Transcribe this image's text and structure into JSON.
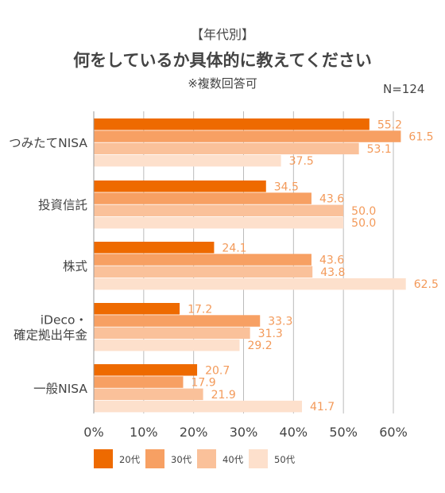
{
  "header": {
    "supertitle": "【年代別】",
    "title": "何をしているか具体的に教えてください",
    "subtitle": "※複数回答可",
    "n_label": "N=124"
  },
  "colors": {
    "20代": "#ee6a00",
    "30代": "#f7a063",
    "40代": "#fac19a",
    "50代": "#fde0cc",
    "value_label": "#f39a5a",
    "grid": "#bbbbbb"
  },
  "chart_data": {
    "type": "bar",
    "orientation": "horizontal",
    "categories": [
      "つみたてNISA",
      "投資信託",
      "株式",
      "iDeco・\n確定拠出年金",
      "一般NISA"
    ],
    "series": [
      {
        "name": "20代",
        "values": [
          55.2,
          34.5,
          24.1,
          17.2,
          20.7
        ]
      },
      {
        "name": "30代",
        "values": [
          61.5,
          43.6,
          43.6,
          33.3,
          17.9
        ]
      },
      {
        "name": "40代",
        "values": [
          53.1,
          50.0,
          43.8,
          31.3,
          21.9
        ]
      },
      {
        "name": "50代",
        "values": [
          37.5,
          50.0,
          62.5,
          29.2,
          41.7
        ]
      }
    ],
    "xticks": [
      "0%",
      "10%",
      "20%",
      "30%",
      "40%",
      "50%",
      "60%"
    ],
    "xlim": [
      0,
      60
    ],
    "grid": true,
    "legend": "bottom"
  }
}
